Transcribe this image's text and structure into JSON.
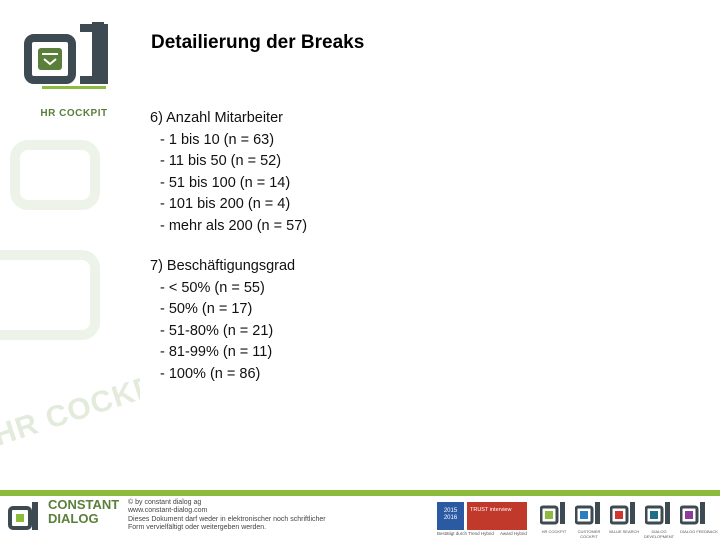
{
  "header": {
    "logo_label": "HR COCKPIT",
    "title": "Detailierung der Breaks"
  },
  "sections": [
    {
      "heading": "6) Anzahl Mitarbeiter",
      "items": [
        "- 1 bis 10 (n = 63)",
        "- 11 bis 50 (n = 52)",
        "- 51 bis 100 (n = 14)",
        "- 101 bis 200 (n = 4)",
        "- mehr als 200 (n = 57)"
      ]
    },
    {
      "heading": "7) Beschäftigungsgrad",
      "items": [
        "- < 50% (n = 55)",
        "- 50% (n = 17)",
        "- 51-80% (n = 21)",
        "- 81-99% (n = 11)",
        "- 100% (n = 86)"
      ]
    }
  ],
  "watermark": {
    "text": "HR COCKPIT"
  },
  "footer": {
    "brand_line1": "CONSTANT",
    "brand_line2": "DIALOG",
    "copyright_lines": [
      "© by constant dialog ag",
      "www.constant-dialog.com",
      "Dieses Dokument darf weder in elektronischer noch schriftlicher",
      "Form vervielfältigt oder weitergeben werden."
    ],
    "badge1_text": "2015 2016",
    "badge2_text": "TRUST interview",
    "badge_captions": [
      "Bestätigt durch",
      "Trend Hybrid",
      "Award Hybrid"
    ],
    "product_captions": [
      "HR COCKPIT",
      "CUSTOMER COCKPIT",
      "VALUE SEARCH",
      "DIALOG DEVELOPMENT",
      "DIALOG FEEDBACK"
    ]
  },
  "colors": {
    "brand_green": "#5a7f3a",
    "accent_green": "#8dbb3e",
    "logo_dark": "#3d4a52"
  }
}
